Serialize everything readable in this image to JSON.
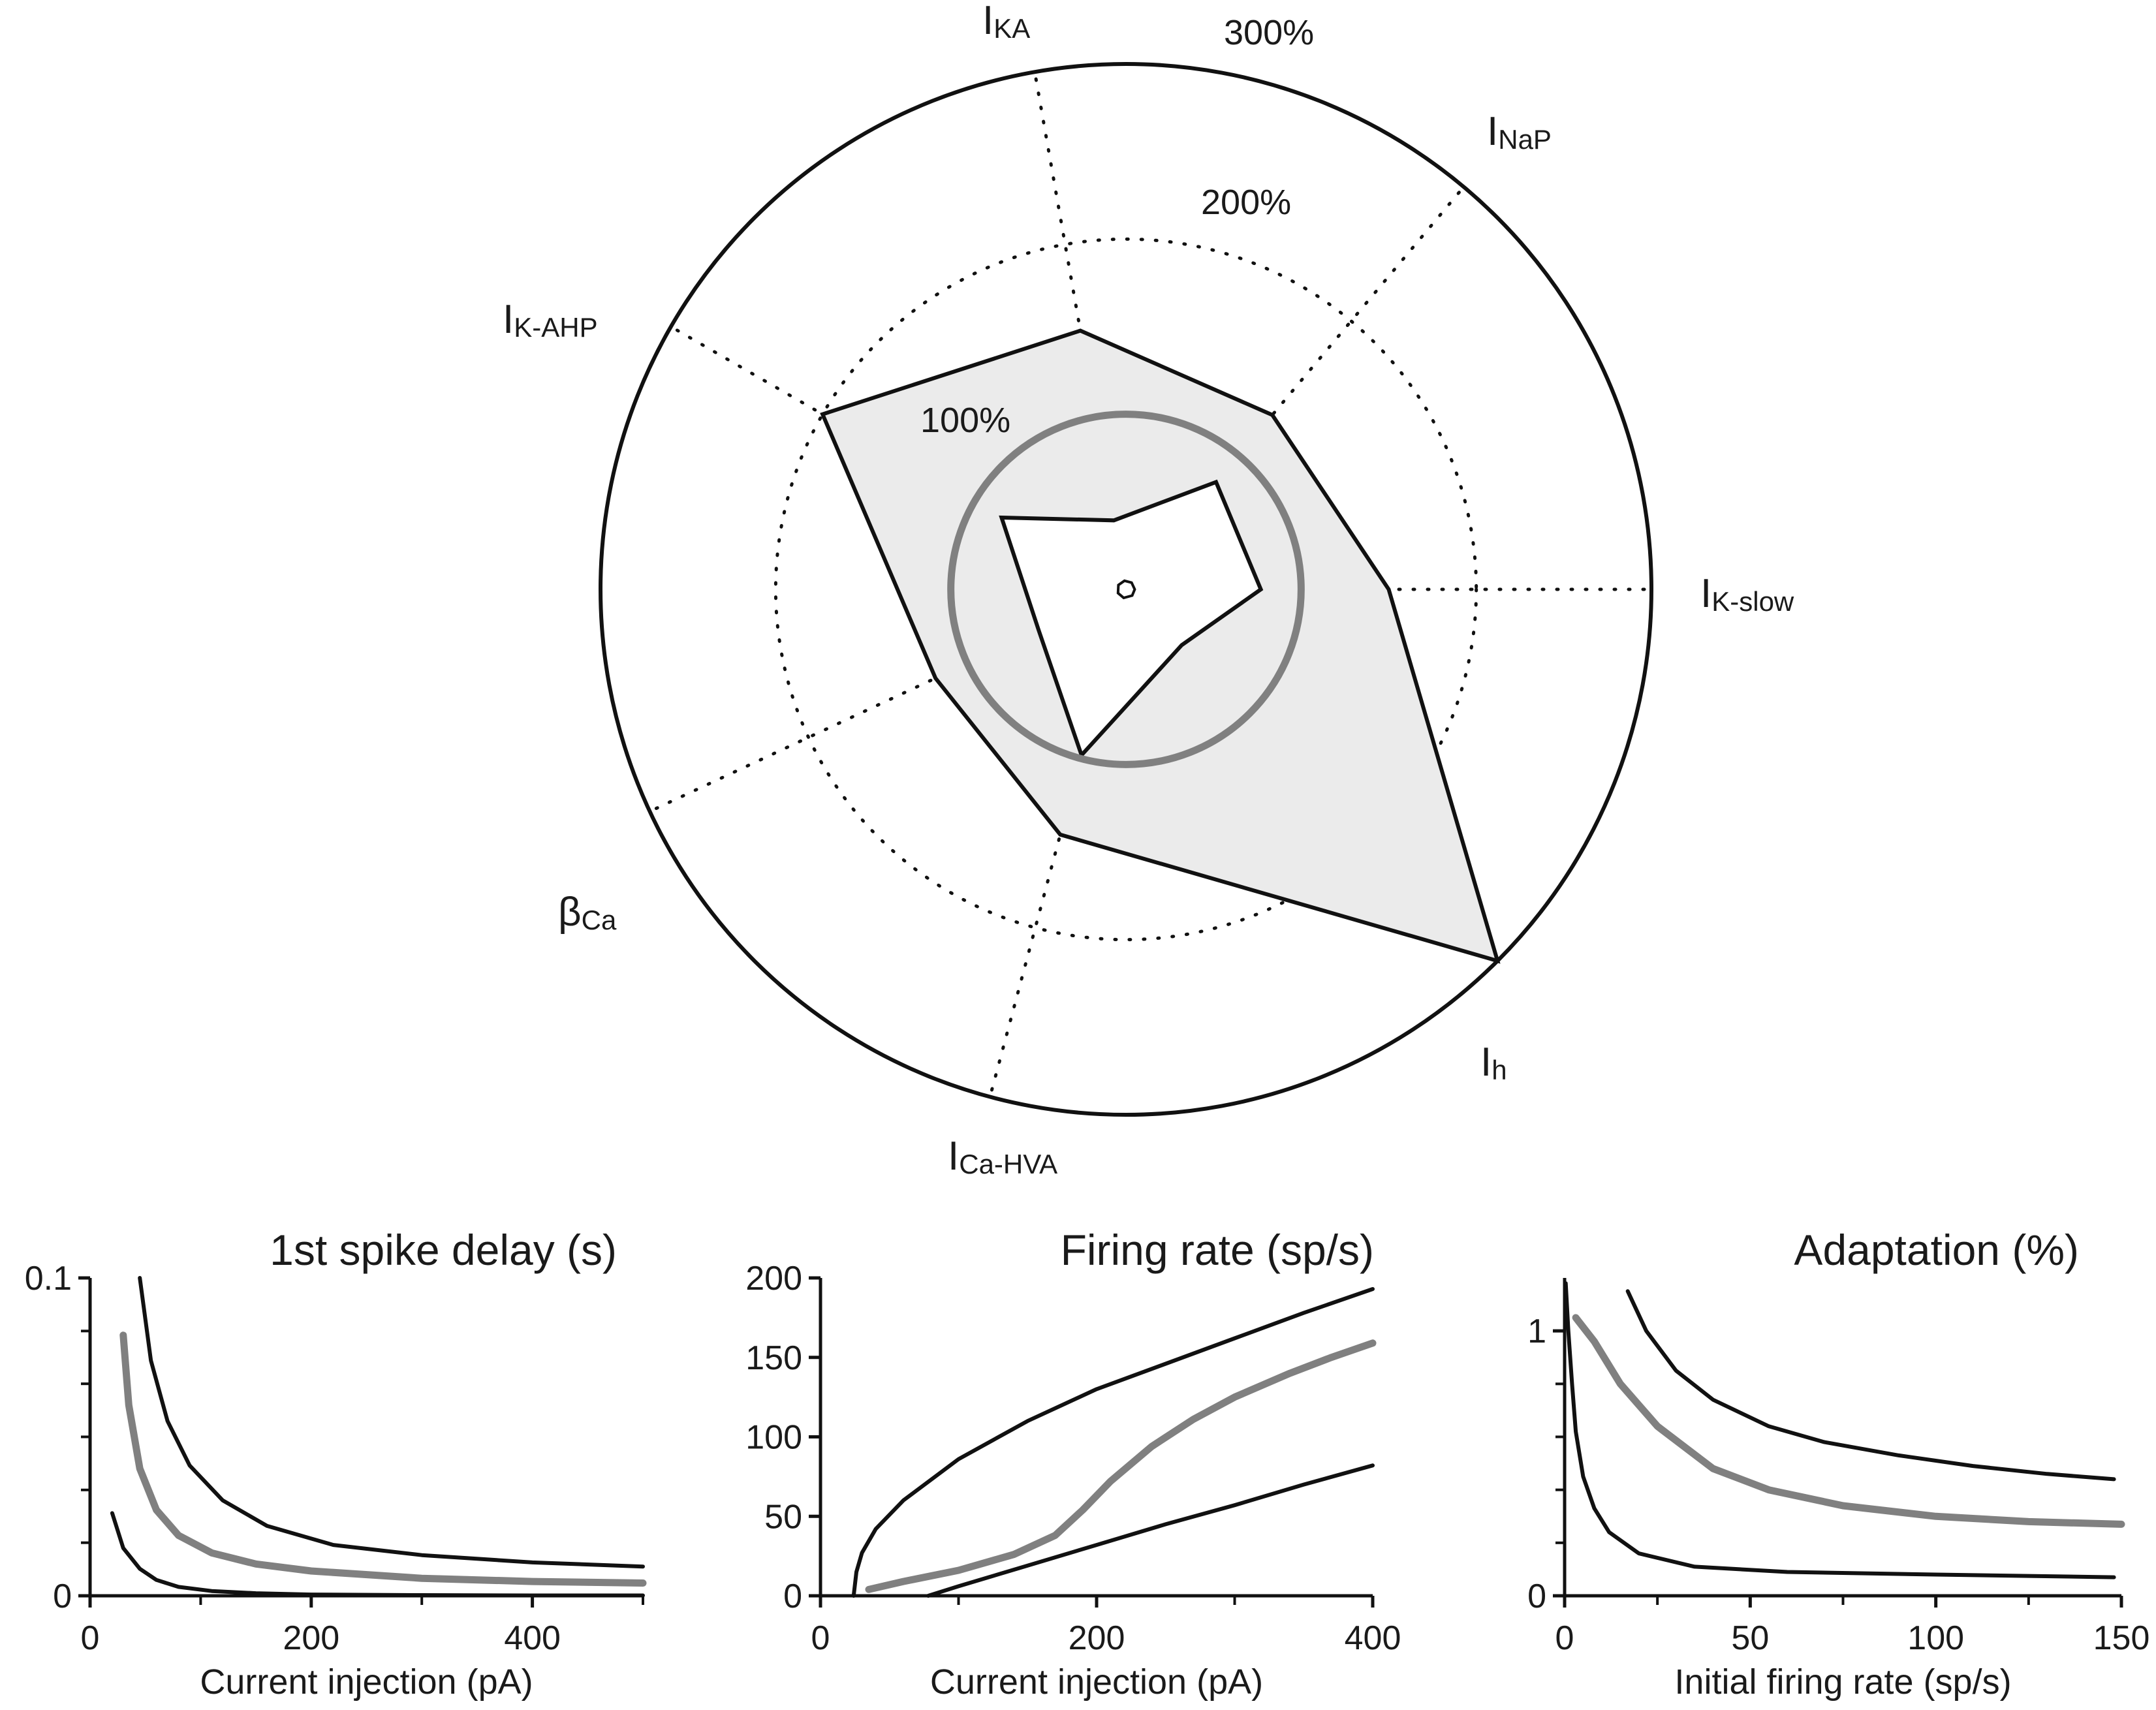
{
  "chart_data": [
    {
      "type": "radar",
      "axes": [
        {
          "main": "I",
          "sub": "K-slow",
          "label": "IK-slow"
        },
        {
          "main": "I",
          "sub": "NaP",
          "label": "INaP"
        },
        {
          "main": "I",
          "sub": "KA",
          "label": "IKA"
        },
        {
          "main": "I",
          "sub": "K-AHP",
          "label": "IK-AHP"
        },
        {
          "main": "β",
          "sub": "Ca",
          "label": "βCa"
        },
        {
          "main": "I",
          "sub": "Ca-HVA",
          "label": "ICa-HVA"
        },
        {
          "main": "I",
          "sub": "h",
          "label": "Ih"
        }
      ],
      "axis_angles_deg": [
        0,
        50,
        100,
        150,
        205,
        255,
        315
      ],
      "ring_labels": [
        "100%",
        "200%",
        "300%"
      ],
      "ring_values": [
        100,
        200,
        300
      ],
      "max_value": 300,
      "series": [
        {
          "role": "upper",
          "values": [
            150,
            130,
            150,
            200,
            120,
            145,
            300
          ],
          "fill": "#ebebeb",
          "stroke": "#111111"
        },
        {
          "role": "lower",
          "values": [
            77,
            80,
            40,
            82,
            55,
            98,
            45
          ],
          "fill": "#ffffff",
          "stroke": "#111111"
        },
        {
          "role": "reference",
          "values": [
            100,
            100,
            100,
            100,
            100,
            100,
            100
          ],
          "stroke": "#808080"
        }
      ],
      "center_values": [
        5,
        5,
        5,
        5,
        5,
        5,
        5
      ]
    },
    {
      "type": "line",
      "title": "1st spike delay (s)",
      "xlabel": "Current injection (pA)",
      "ylabel": "",
      "xlim": [
        0,
        500
      ],
      "ylim": [
        0,
        0.1
      ],
      "xticks": [
        0,
        200,
        400
      ],
      "xtick_labels": [
        "0",
        "200",
        "400"
      ],
      "yticks": [
        0,
        0.1
      ],
      "ytick_labels": [
        "0",
        "0.1"
      ],
      "series": [
        {
          "role": "upper",
          "color": "#111111",
          "x": [
            45,
            55,
            70,
            90,
            120,
            160,
            220,
            300,
            400,
            500
          ],
          "y": [
            0.1,
            0.074,
            0.055,
            0.041,
            0.03,
            0.022,
            0.016,
            0.0128,
            0.0105,
            0.0092
          ]
        },
        {
          "role": "middle",
          "color": "#808080",
          "x": [
            30,
            35,
            45,
            60,
            80,
            110,
            150,
            200,
            300,
            400,
            500
          ],
          "y": [
            0.082,
            0.06,
            0.04,
            0.027,
            0.019,
            0.0135,
            0.01,
            0.0078,
            0.0055,
            0.0045,
            0.004
          ]
        },
        {
          "role": "lower",
          "color": "#111111",
          "x": [
            20,
            30,
            45,
            60,
            80,
            110,
            150,
            200,
            300,
            400,
            500
          ],
          "y": [
            0.026,
            0.015,
            0.0085,
            0.005,
            0.0028,
            0.0015,
            0.0008,
            0.0004,
            0.0002,
            0.0001,
            0.0001
          ]
        }
      ]
    },
    {
      "type": "line",
      "title": "Firing rate (sp/s)",
      "xlabel": "Current injection (pA)",
      "ylabel": "",
      "xlim": [
        0,
        400
      ],
      "ylim": [
        0,
        200
      ],
      "xticks": [
        0,
        200,
        400
      ],
      "xtick_labels": [
        "0",
        "200",
        "400"
      ],
      "yticks": [
        0,
        50,
        100,
        150,
        200
      ],
      "ytick_labels": [
        "0",
        "50",
        "100",
        "150",
        "200"
      ],
      "series": [
        {
          "role": "upper",
          "color": "#111111",
          "x": [
            24,
            26,
            30,
            40,
            60,
            100,
            150,
            200,
            250,
            300,
            350,
            400
          ],
          "y": [
            0,
            15,
            27,
            42,
            60,
            86,
            110,
            130,
            146,
            162,
            178,
            193
          ]
        },
        {
          "role": "middle",
          "color": "#808080",
          "x": [
            35,
            60,
            100,
            140,
            170,
            190,
            210,
            240,
            270,
            300,
            340,
            370,
            400
          ],
          "y": [
            4,
            9,
            16,
            26,
            38,
            54,
            72,
            94,
            111,
            125,
            140,
            150,
            159
          ]
        },
        {
          "role": "lower",
          "color": "#111111",
          "x": [
            78,
            100,
            150,
            200,
            250,
            300,
            350,
            400
          ],
          "y": [
            0,
            6,
            19,
            32,
            45,
            57,
            70,
            82
          ]
        }
      ]
    },
    {
      "type": "line",
      "title": "Adaptation (%)",
      "xlabel": "Initial firing rate (sp/s)",
      "ylabel": "",
      "xlim": [
        0,
        150
      ],
      "ylim": [
        0,
        1.2
      ],
      "xticks": [
        0,
        50,
        100,
        150
      ],
      "xtick_labels": [
        "0",
        "50",
        "100",
        "150"
      ],
      "yticks": [
        0,
        1
      ],
      "ytick_labels": [
        "0",
        "1"
      ],
      "series": [
        {
          "role": "upper",
          "color": "#111111",
          "x": [
            17,
            22,
            30,
            40,
            55,
            70,
            90,
            110,
            130,
            148
          ],
          "y": [
            1.15,
            1.0,
            0.85,
            0.74,
            0.64,
            0.58,
            0.53,
            0.49,
            0.46,
            0.44
          ]
        },
        {
          "role": "middle",
          "color": "#808080",
          "x": [
            3,
            8,
            15,
            25,
            40,
            55,
            75,
            100,
            125,
            150
          ],
          "y": [
            1.05,
            0.96,
            0.8,
            0.64,
            0.48,
            0.4,
            0.34,
            0.3,
            0.28,
            0.27
          ]
        },
        {
          "role": "lower",
          "color": "#111111",
          "x": [
            0.3,
            1,
            2,
            3,
            5,
            8,
            12,
            20,
            35,
            60,
            100,
            148
          ],
          "y": [
            1.18,
            1.0,
            0.8,
            0.62,
            0.45,
            0.33,
            0.24,
            0.16,
            0.11,
            0.09,
            0.08,
            0.07
          ]
        }
      ]
    }
  ]
}
